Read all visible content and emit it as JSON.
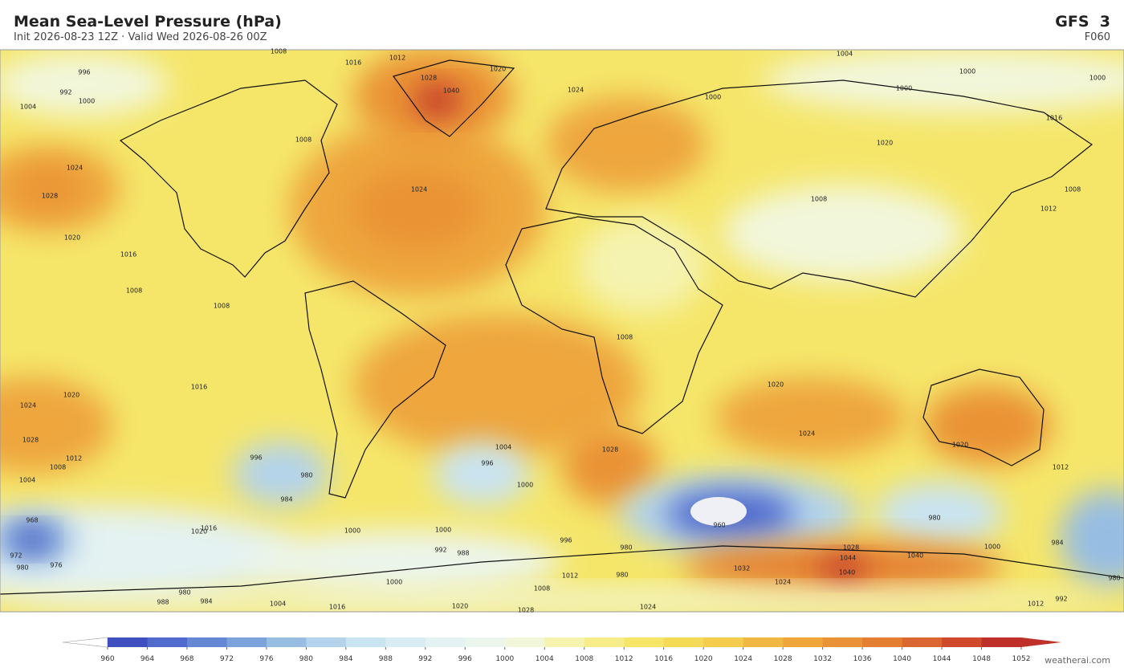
{
  "header": {
    "title": "Mean Sea-Level Pressure  (hPa)",
    "subtitle": "Init 2026-08-23 12Z  ·  Valid Wed 2026-08-26 00Z",
    "model": "GFS  3",
    "forecast": "F060"
  },
  "contour_labels": [
    1008,
    1016,
    1012,
    1020,
    1004,
    1000,
    1000,
    996,
    992,
    1000,
    1004,
    1028,
    1040,
    1024,
    1000,
    1000,
    1016,
    1008,
    1024,
    1028,
    1020,
    1016,
    1024,
    1020,
    1008,
    1008,
    1012,
    1008,
    1008,
    1008,
    1016,
    1020,
    1024,
    1028,
    1020,
    1024,
    1028,
    1004,
    1020,
    1012,
    1012,
    1008,
    1004,
    996,
    1000,
    996,
    980,
    984,
    980,
    960,
    1020,
    1016,
    1000,
    1000,
    992,
    988,
    996,
    980,
    1000,
    984,
    1028,
    1040,
    1044,
    1040,
    1032,
    1024,
    1012,
    980,
    1008,
    1000,
    980,
    988,
    984,
    1004,
    1016,
    1020,
    1028,
    1024,
    1012,
    992,
    980,
    972,
    976,
    968,
    980
  ],
  "colorbar": {
    "ticks": [
      960,
      964,
      968,
      972,
      976,
      980,
      984,
      988,
      992,
      996,
      1000,
      1004,
      1008,
      1012,
      1016,
      1020,
      1024,
      1028,
      1032,
      1036,
      1040,
      1044,
      1048,
      1052
    ],
    "colors": [
      "#3f4fc0",
      "#5069cc",
      "#6488d4",
      "#7ba3da",
      "#97bde3",
      "#b3d3ec",
      "#c9e3f1",
      "#d9ecf3",
      "#e4f2f2",
      "#ecf5ec",
      "#f2f7dc",
      "#f5f3b0",
      "#f6ed8a",
      "#f5e66a",
      "#f5da58",
      "#f4cc4e",
      "#f1b943",
      "#eea63c",
      "#ea9336",
      "#e47f32",
      "#da6630",
      "#cf4a2c",
      "#c0302a"
    ],
    "under_color": "#ffffff",
    "over_color": "#c0302a"
  },
  "footer": "weatherai.com"
}
